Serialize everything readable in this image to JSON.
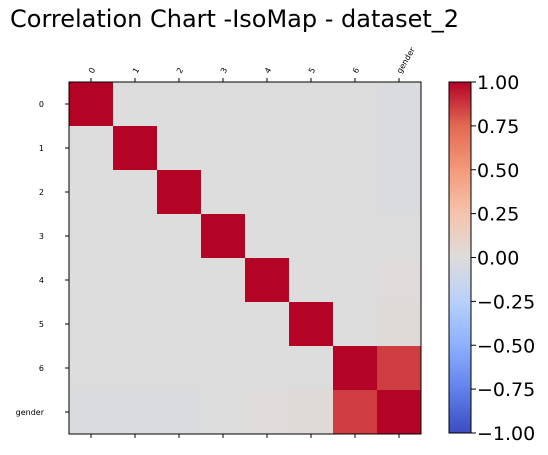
{
  "chart_data": {
    "type": "heatmap",
    "title": "Correlation Chart -IsoMap - dataset_2",
    "x_categories": [
      "0",
      "1",
      "2",
      "3",
      "4",
      "5",
      "6",
      "gender"
    ],
    "y_categories": [
      "0",
      "1",
      "2",
      "3",
      "4",
      "5",
      "6",
      "gender"
    ],
    "values": [
      [
        1.0,
        0.0,
        0.0,
        0.0,
        0.0,
        0.0,
        0.0,
        -0.02
      ],
      [
        0.0,
        1.0,
        0.0,
        0.0,
        0.0,
        0.0,
        0.0,
        -0.02
      ],
      [
        0.0,
        0.0,
        1.0,
        0.0,
        0.0,
        0.0,
        0.0,
        -0.02
      ],
      [
        0.0,
        0.0,
        0.0,
        1.0,
        0.0,
        0.0,
        0.0,
        -0.01
      ],
      [
        0.0,
        0.0,
        0.0,
        0.0,
        1.0,
        0.0,
        0.0,
        0.01
      ],
      [
        0.0,
        0.0,
        0.0,
        0.0,
        0.0,
        1.0,
        0.0,
        0.02
      ],
      [
        0.0,
        0.0,
        0.0,
        0.0,
        0.0,
        0.0,
        1.0,
        0.86
      ],
      [
        -0.02,
        -0.02,
        -0.02,
        -0.01,
        0.01,
        0.02,
        0.86,
        1.0
      ]
    ],
    "colorbar": {
      "colormap": "coolwarm",
      "range": [
        -1.0,
        1.0
      ],
      "ticks": [
        "1.00",
        "0.75",
        "0.50",
        "0.25",
        "0.00",
        "−0.25",
        "−0.50",
        "−0.75",
        "−1.00"
      ],
      "placement": "right"
    },
    "xlabel": "",
    "ylabel": "",
    "grid": false
  }
}
